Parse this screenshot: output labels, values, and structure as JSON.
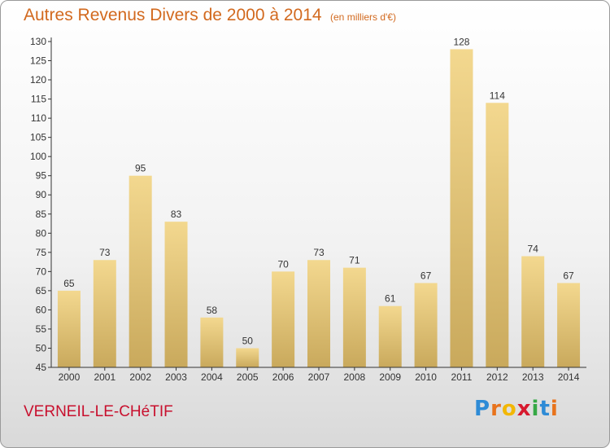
{
  "header": {
    "title": "Autres Revenus Divers de 2000 à 2014",
    "unit": "(en milliers d'€)"
  },
  "footer": {
    "commune": "VERNEIL-LE-CHéTIF",
    "logo_text": "Proxiti"
  },
  "colors": {
    "title": "#d2691e",
    "commune": "#c8102e",
    "bar_light": "#f3d88f",
    "bar_dark": "#c9a95c",
    "axis": "#333333",
    "logo": [
      "#2e8bd6",
      "#e8731c",
      "#f2b705",
      "#d7192e",
      "#35a845",
      "#2e8bd6",
      "#e8731c"
    ]
  },
  "chart_data": {
    "type": "bar",
    "title": "Autres Revenus Divers de 2000 à 2014",
    "categories": [
      "2000",
      "2001",
      "2002",
      "2003",
      "2004",
      "2005",
      "2006",
      "2007",
      "2008",
      "2009",
      "2010",
      "2011",
      "2012",
      "2013",
      "2014"
    ],
    "values": [
      65,
      73,
      95,
      83,
      58,
      50,
      70,
      73,
      71,
      61,
      67,
      128,
      114,
      74,
      67
    ],
    "data_labels": [
      "65",
      "73",
      "95",
      "83",
      "58",
      "50",
      "70",
      "73",
      "71",
      "61",
      "67",
      "128",
      "114",
      "74",
      "67"
    ],
    "y_ticks": [
      45,
      50,
      55,
      60,
      65,
      70,
      75,
      80,
      85,
      90,
      95,
      100,
      105,
      110,
      115,
      120,
      125,
      130
    ],
    "ylim": [
      45,
      130
    ],
    "xlabel": "",
    "ylabel": "",
    "grid": false,
    "legend": "none"
  }
}
